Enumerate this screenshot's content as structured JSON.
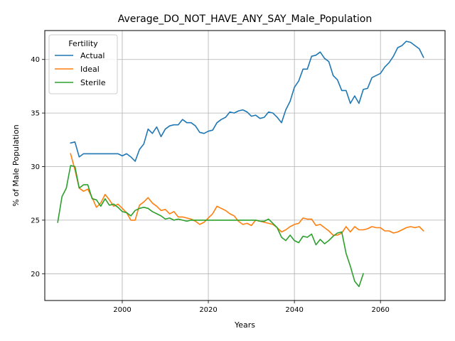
{
  "chart_data": {
    "type": "line",
    "title": "Average_DO_NOT_HAVE_ANY_SAY_Male_Population",
    "xlabel": "Years",
    "ylabel": "% of Male Population",
    "xlim": [
      1982,
      2075
    ],
    "ylim": [
      17.5,
      42.7
    ],
    "xticks": [
      2000,
      2020,
      2040,
      2060
    ],
    "yticks": [
      20,
      25,
      30,
      35,
      40
    ],
    "grid": true,
    "legend": {
      "title": "Fertility",
      "placement": "top-left"
    },
    "colors": {
      "Actual": "#1f77b4",
      "Ideal": "#ff7f0e",
      "Sterile": "#2ca02c"
    },
    "series": [
      {
        "name": "Actual",
        "x": [
          1988,
          1989,
          1990,
          1991,
          1992,
          1993,
          1994,
          1995,
          1996,
          1997,
          1998,
          1999,
          2000,
          2001,
          2002,
          2003,
          2004,
          2005,
          2006,
          2007,
          2008,
          2009,
          2010,
          2011,
          2012,
          2013,
          2014,
          2015,
          2016,
          2017,
          2018,
          2019,
          2020,
          2021,
          2022,
          2023,
          2024,
          2025,
          2026,
          2027,
          2028,
          2029,
          2030,
          2031,
          2032,
          2033,
          2034,
          2035,
          2036,
          2037,
          2038,
          2039,
          2040,
          2041,
          2042,
          2043,
          2044,
          2045,
          2046,
          2047,
          2048,
          2049,
          2050,
          2051,
          2052,
          2053,
          2054,
          2055,
          2056,
          2057,
          2058,
          2059,
          2060,
          2061,
          2062,
          2063,
          2064,
          2065,
          2066,
          2067,
          2068,
          2069,
          2070
        ],
        "y": [
          32.2,
          32.3,
          30.9,
          31.2,
          31.2,
          31.2,
          31.2,
          31.2,
          31.2,
          31.2,
          31.2,
          31.2,
          31.0,
          31.2,
          30.9,
          30.5,
          31.6,
          32.1,
          33.5,
          33.1,
          33.7,
          32.8,
          33.5,
          33.8,
          33.9,
          33.9,
          34.4,
          34.1,
          34.1,
          33.8,
          33.2,
          33.1,
          33.3,
          33.4,
          34.1,
          34.4,
          34.6,
          35.1,
          35.0,
          35.2,
          35.3,
          35.1,
          34.7,
          34.8,
          34.5,
          34.6,
          35.1,
          35.0,
          34.6,
          34.1,
          35.3,
          36.1,
          37.4,
          38.0,
          39.1,
          39.1,
          40.3,
          40.4,
          40.7,
          40.1,
          39.8,
          38.5,
          38.1,
          37.1,
          37.1,
          35.9,
          36.6,
          35.9,
          37.2,
          37.3,
          38.3,
          38.5,
          38.7,
          39.3,
          39.7,
          40.3,
          41.1,
          41.3,
          41.7,
          41.6,
          41.3,
          41.0,
          40.2
        ]
      },
      {
        "name": "Ideal",
        "x": [
          1988,
          1989,
          1990,
          1991,
          1992,
          1993,
          1994,
          1995,
          1996,
          1997,
          1998,
          1999,
          2000,
          2001,
          2002,
          2003,
          2004,
          2005,
          2006,
          2007,
          2008,
          2009,
          2010,
          2011,
          2012,
          2013,
          2014,
          2015,
          2016,
          2017,
          2018,
          2019,
          2020,
          2021,
          2022,
          2023,
          2024,
          2025,
          2026,
          2027,
          2028,
          2029,
          2030,
          2031,
          2032,
          2033,
          2034,
          2035,
          2036,
          2037,
          2038,
          2039,
          2040,
          2041,
          2042,
          2043,
          2044,
          2045,
          2046,
          2047,
          2048,
          2049,
          2050,
          2051,
          2052,
          2053,
          2054,
          2055,
          2056,
          2057,
          2058,
          2059,
          2060,
          2061,
          2062,
          2063,
          2064,
          2065,
          2066,
          2067,
          2068,
          2069,
          2070
        ],
        "y": [
          31.2,
          29.7,
          28.0,
          27.7,
          27.9,
          27.1,
          26.2,
          26.6,
          27.4,
          26.9,
          26.3,
          26.5,
          26.1,
          25.7,
          25.0,
          25.0,
          26.4,
          26.7,
          27.1,
          26.6,
          26.3,
          25.9,
          26.0,
          25.6,
          25.8,
          25.3,
          25.3,
          25.2,
          25.1,
          24.9,
          24.6,
          24.8,
          25.2,
          25.6,
          26.3,
          26.1,
          25.9,
          25.6,
          25.4,
          24.9,
          24.6,
          24.7,
          24.5,
          25.0,
          24.9,
          24.8,
          24.7,
          24.6,
          24.3,
          23.9,
          24.1,
          24.4,
          24.6,
          24.7,
          25.2,
          25.1,
          25.1,
          24.5,
          24.6,
          24.3,
          24.0,
          23.6,
          23.6,
          23.8,
          24.4,
          23.9,
          24.4,
          24.1,
          24.1,
          24.2,
          24.4,
          24.3,
          24.3,
          24.0,
          24.0,
          23.8,
          23.9,
          24.1,
          24.3,
          24.4,
          24.3,
          24.4,
          24.0
        ]
      },
      {
        "name": "Sterile",
        "x": [
          1985,
          1986,
          1987,
          1988,
          1989,
          1990,
          1991,
          1992,
          1993,
          1994,
          1995,
          1996,
          1997,
          1998,
          1999,
          2000,
          2001,
          2002,
          2003,
          2004,
          2005,
          2006,
          2007,
          2008,
          2009,
          2010,
          2011,
          2012,
          2013,
          2014,
          2015,
          2016,
          2017,
          2018,
          2019,
          2020,
          2021,
          2022,
          2023,
          2024,
          2025,
          2026,
          2027,
          2028,
          2029,
          2030,
          2031,
          2032,
          2033,
          2034,
          2035,
          2036,
          2037,
          2038,
          2039,
          2040,
          2041,
          2042,
          2043,
          2044,
          2045,
          2046,
          2047,
          2048,
          2049,
          2050,
          2051,
          2052,
          2053,
          2054,
          2055,
          2056
        ],
        "y": [
          24.8,
          27.2,
          28.0,
          30.1,
          30.0,
          28.0,
          28.3,
          28.3,
          27.0,
          26.9,
          26.3,
          27.0,
          26.4,
          26.5,
          26.2,
          25.8,
          25.7,
          25.4,
          25.9,
          26.1,
          26.2,
          26.1,
          25.8,
          25.6,
          25.4,
          25.1,
          25.2,
          25.0,
          25.1,
          25.0,
          24.9,
          25.0,
          25.0,
          25.0,
          25.0,
          25.0,
          25.0,
          25.0,
          25.0,
          25.0,
          25.0,
          25.0,
          25.0,
          25.0,
          25.0,
          25.0,
          25.0,
          24.9,
          24.9,
          25.1,
          24.7,
          24.3,
          23.4,
          23.1,
          23.6,
          23.1,
          22.9,
          23.5,
          23.4,
          23.7,
          22.7,
          23.2,
          22.8,
          23.1,
          23.5,
          23.8,
          23.9,
          21.9,
          20.7,
          19.3,
          18.8,
          20.0
        ]
      }
    ]
  }
}
